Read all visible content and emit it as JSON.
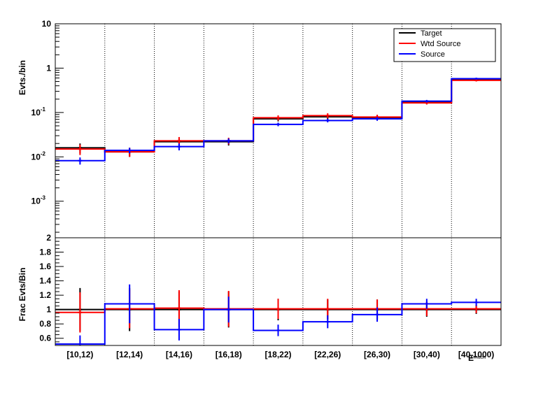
{
  "chart_data": [
    {
      "type": "histogram",
      "panel": "top",
      "ylabel": "Evts./bin",
      "yscale": "log",
      "ylim": [
        0.00015,
        10
      ],
      "y_ticks": [
        {
          "value": 0.001,
          "base": "10",
          "exp": "-3"
        },
        {
          "value": 0.01,
          "base": "10",
          "exp": "-2"
        },
        {
          "value": 0.1,
          "base": "10",
          "exp": "-1"
        },
        {
          "value": 1,
          "base": "1",
          "exp": ""
        },
        {
          "value": 10,
          "base": "10",
          "exp": ""
        }
      ],
      "grid": "vertical dotted at bin edges",
      "legend_position": "top-right",
      "series": [
        {
          "name": "Target",
          "color": "#000000",
          "values": [
            0.016,
            0.013,
            0.022,
            0.022,
            0.072,
            0.08,
            0.077,
            0.17,
            0.54
          ],
          "errors": [
            0.004,
            0.003,
            0.004,
            0.004,
            0.009,
            0.01,
            0.01,
            0.015,
            0.03
          ]
        },
        {
          "name": "Wtd Source",
          "color": "#ff0000",
          "values": [
            0.015,
            0.013,
            0.023,
            0.023,
            0.076,
            0.085,
            0.079,
            0.165,
            0.53
          ],
          "errors": [
            0.004,
            0.003,
            0.005,
            0.004,
            0.01,
            0.011,
            0.01,
            0.014,
            0.03
          ]
        },
        {
          "name": "Source",
          "color": "#0000ff",
          "values": [
            0.0082,
            0.014,
            0.017,
            0.023,
            0.054,
            0.066,
            0.072,
            0.18,
            0.58
          ],
          "errors": [
            0.0015,
            0.002,
            0.003,
            0.003,
            0.005,
            0.006,
            0.007,
            0.012,
            0.03
          ]
        }
      ]
    },
    {
      "type": "histogram",
      "panel": "bottom",
      "ylabel": "Frac Evts/Bin",
      "ylim": [
        0.5,
        2
      ],
      "y_ticks": [
        "0.6",
        "0.8",
        "1",
        "1.2",
        "1.4",
        "1.6",
        "1.8",
        "2"
      ],
      "xlabel": "E_{muon}",
      "categories": [
        "[10,12)",
        "[12,14)",
        "[14,16)",
        "[16,18)",
        "[18,22)",
        "[22,26)",
        "[26,30)",
        "[30,40)",
        "[40,1000)"
      ],
      "series": [
        {
          "name": "Target",
          "color": "#000000",
          "values": [
            1.0,
            1.0,
            1.0,
            1.0,
            1.0,
            1.0,
            1.0,
            1.0,
            1.0
          ],
          "errors": [
            0.3,
            0.3,
            0.25,
            0.25,
            0.15,
            0.14,
            0.14,
            0.1,
            0.06
          ]
        },
        {
          "name": "Wtd Source",
          "color": "#ff0000",
          "values": [
            0.96,
            1.01,
            1.02,
            1.01,
            1.01,
            1.01,
            1.01,
            1.01,
            1.01
          ],
          "errors": [
            0.28,
            0.27,
            0.25,
            0.25,
            0.14,
            0.14,
            0.13,
            0.1,
            0.06
          ]
        },
        {
          "name": "Source",
          "color": "#0000ff",
          "values": [
            0.52,
            1.08,
            0.72,
            1.0,
            0.71,
            0.83,
            0.93,
            1.08,
            1.1
          ],
          "errors": [
            0.12,
            0.27,
            0.15,
            0.18,
            0.08,
            0.09,
            0.1,
            0.07,
            0.05
          ]
        }
      ]
    }
  ]
}
